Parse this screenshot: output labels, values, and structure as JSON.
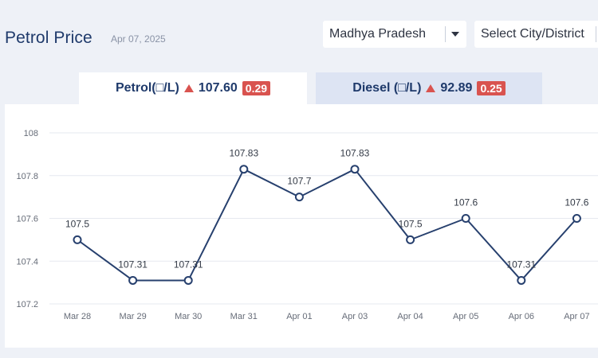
{
  "header": {
    "title": "Petrol Price",
    "date": "Apr 07, 2025",
    "state_select": "Madhya Pradesh",
    "city_select": "Select City/District"
  },
  "tabs": [
    {
      "label": "Petrol(□/L)",
      "price": "107.60",
      "change": "0.29",
      "trend": "up"
    },
    {
      "label": "Diesel (□/L)",
      "price": "92.89",
      "change": "0.25",
      "trend": "up"
    }
  ],
  "colors": {
    "line": "#27406e",
    "up_badge": "#d9534f",
    "title": "#1f3a6b"
  },
  "chart_data": {
    "type": "line",
    "categories": [
      "Mar 28",
      "Mar 29",
      "Mar 30",
      "Mar 31",
      "Apr 01",
      "Apr 03",
      "Apr 04",
      "Apr 05",
      "Apr 06",
      "Apr 07"
    ],
    "values": [
      107.5,
      107.31,
      107.31,
      107.83,
      107.7,
      107.83,
      107.5,
      107.6,
      107.31,
      107.6
    ],
    "data_labels": [
      "107.5",
      "107.31",
      "107.31",
      "107.83",
      "107.7",
      "107.83",
      "107.5",
      "107.6",
      "107.31",
      "107.6"
    ],
    "yticks": [
      "108",
      "107.8",
      "107.6",
      "107.4",
      "107.2"
    ],
    "ytick_values": [
      108,
      107.8,
      107.6,
      107.4,
      107.2
    ],
    "ylim": [
      107.2,
      108
    ],
    "grid": true,
    "title": "",
    "xlabel": "",
    "ylabel": ""
  }
}
